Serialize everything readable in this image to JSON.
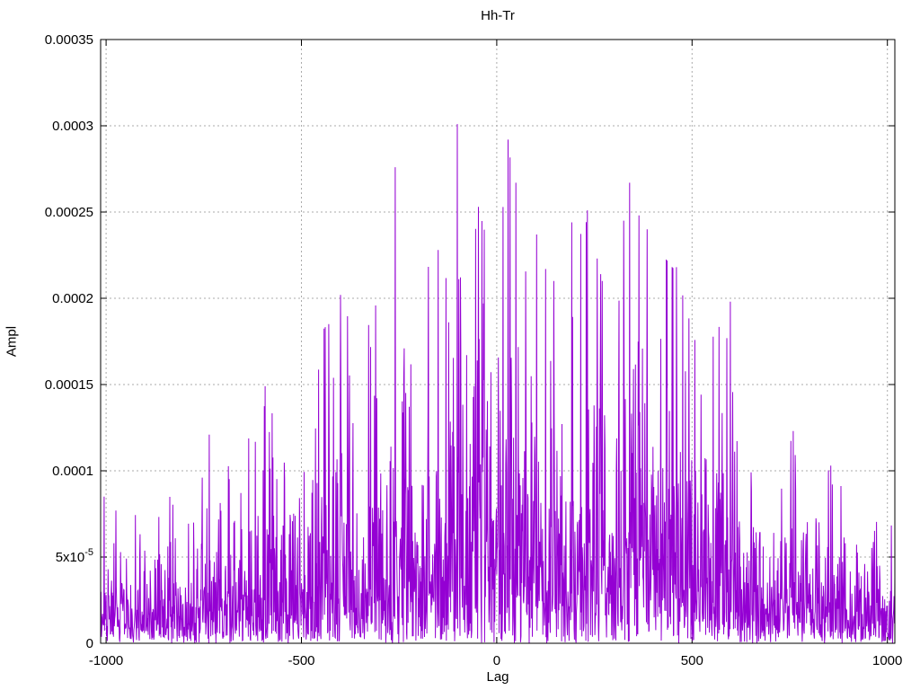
{
  "chart_data": {
    "type": "line",
    "title": "Hh-Tr",
    "xlabel": "Lag",
    "ylabel": "Ampl",
    "x_range": [
      -1014,
      1019
    ],
    "y_range": [
      0,
      0.00035
    ],
    "grid": true,
    "legend": "none",
    "line_color": "#9400d3",
    "grid_color": "#ababab",
    "border_color": "#000000",
    "tick_color": "#000000",
    "x_ticks": [
      {
        "label": "-1000",
        "value": -1000
      },
      {
        "label": "-500",
        "value": -500
      },
      {
        "label": "0",
        "value": 0
      },
      {
        "label": "500",
        "value": 500
      },
      {
        "label": "1000",
        "value": 1000
      }
    ],
    "y_ticks": [
      {
        "label": "0",
        "value": 0
      },
      {
        "label": "5x10",
        "sup": "-5",
        "value": 5e-05
      },
      {
        "label": "0.0001",
        "value": 0.0001
      },
      {
        "label": "0.00015",
        "value": 0.00015
      },
      {
        "label": "0.0002",
        "value": 0.0002
      },
      {
        "label": "0.00025",
        "value": 0.00025
      },
      {
        "label": "0.0003",
        "value": 0.0003
      },
      {
        "label": "0.00035",
        "value": 0.00035
      }
    ],
    "generator": {
      "seed": 1337,
      "step": 1,
      "decay": 4.5
    },
    "envelope": [
      [
        -1014,
        8e-05
      ],
      [
        -950,
        7.5e-05
      ],
      [
        -870,
        9e-05
      ],
      [
        -800,
        0.0001
      ],
      [
        -730,
        0.000115
      ],
      [
        -650,
        0.00011
      ],
      [
        -590,
        0.000145
      ],
      [
        -520,
        0.00014
      ],
      [
        -450,
        0.00018
      ],
      [
        -400,
        0.000195
      ],
      [
        -350,
        0.00018
      ],
      [
        -300,
        0.00021
      ],
      [
        -260,
        0.00026
      ],
      [
        -210,
        0.00022
      ],
      [
        -150,
        0.000225
      ],
      [
        -100,
        0.00028
      ],
      [
        -50,
        0.00025
      ],
      [
        0,
        0.00026
      ],
      [
        30,
        0.000285
      ],
      [
        60,
        0.00026
      ],
      [
        100,
        0.000235
      ],
      [
        150,
        0.000225
      ],
      [
        200,
        0.00024
      ],
      [
        235,
        0.000245
      ],
      [
        280,
        0.0002
      ],
      [
        340,
        0.00026
      ],
      [
        390,
        0.000235
      ],
      [
        460,
        0.000215
      ],
      [
        520,
        0.000165
      ],
      [
        600,
        0.000195
      ],
      [
        660,
        0.00013
      ],
      [
        720,
        0.000112
      ],
      [
        770,
        0.00012
      ],
      [
        850,
        0.0001
      ],
      [
        920,
        8e-05
      ],
      [
        1019,
        7.2e-05
      ]
    ],
    "highlight_peaks": [
      [
        -1005,
        8.5e-05
      ],
      [
        -736,
        0.000121
      ],
      [
        -593,
        0.000149
      ],
      [
        -430,
        0.000185
      ],
      [
        -400,
        0.000202
      ],
      [
        -260,
        0.000276
      ],
      [
        -150,
        0.000228
      ],
      [
        -101,
        0.000301
      ],
      [
        -47,
        0.000253
      ],
      [
        29,
        0.000292
      ],
      [
        49,
        0.000267
      ],
      [
        102,
        0.000237
      ],
      [
        125,
        0.000217
      ],
      [
        146,
        0.00021
      ],
      [
        192,
        0.000244
      ],
      [
        232,
        0.000251
      ],
      [
        340,
        0.000267
      ],
      [
        385,
        0.00024
      ],
      [
        460,
        0.000218
      ],
      [
        598,
        0.000198
      ],
      [
        759,
        0.000123
      ],
      [
        855,
        0.000103
      ]
    ]
  }
}
